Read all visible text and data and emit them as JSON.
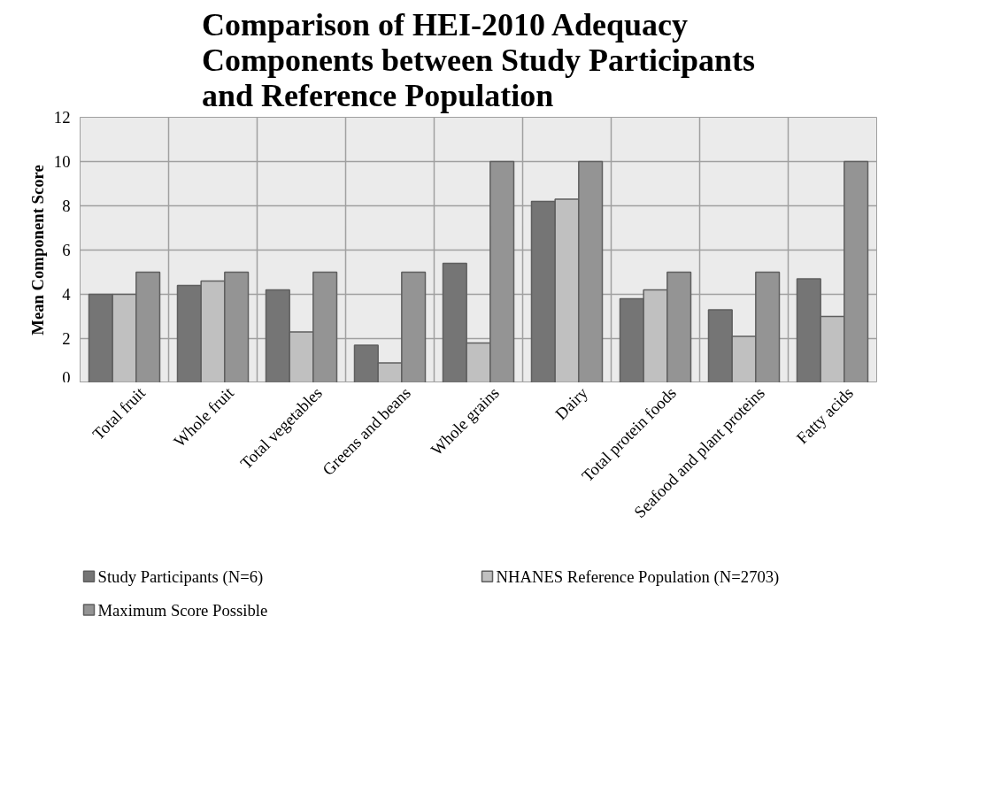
{
  "chart_data": {
    "type": "bar",
    "title": "Comparison of HEI-2010 Adequacy Components between Study Participants and Reference Population",
    "ylabel": "Mean Component Score",
    "categories": [
      "Total fruit",
      "Whole fruit",
      "Total vegetables",
      "Greens and beans",
      "Whole grains",
      "Dairy",
      "Total protein foods",
      "Seafood and plant proteins",
      "Fatty acids"
    ],
    "series": [
      {
        "name": "Study Participants (N=6)",
        "color": "#757575",
        "values": [
          4.0,
          4.4,
          4.2,
          1.7,
          5.4,
          8.2,
          3.8,
          3.3,
          4.7
        ]
      },
      {
        "name": "NHANES Reference Population (N=2703)",
        "color": "#c0c0c0",
        "values": [
          4.0,
          4.6,
          2.3,
          0.9,
          1.8,
          8.3,
          4.2,
          2.1,
          3.0
        ]
      },
      {
        "name": "Maximum Score Possible",
        "color": "#949494",
        "values": [
          5,
          5,
          5,
          5,
          10,
          10,
          5,
          5,
          10
        ]
      }
    ],
    "ylim": [
      0,
      12
    ],
    "yticks": [
      0,
      2,
      4,
      6,
      8,
      10,
      12
    ],
    "grid": true,
    "legend": "bottom"
  }
}
